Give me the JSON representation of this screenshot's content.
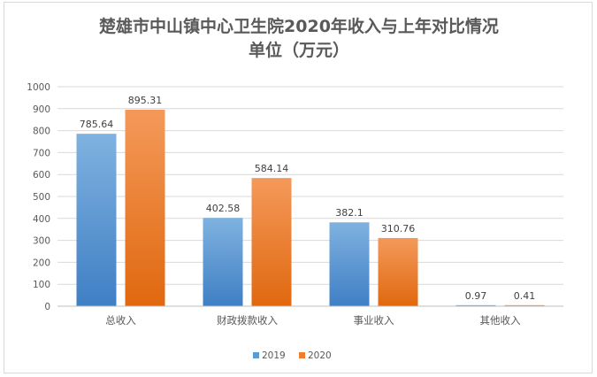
{
  "chart_data": {
    "type": "bar",
    "title": "楚雄市中山镇中心卫生院2020年收入与上年对比情况",
    "subtitle": "单位（万元）",
    "categories": [
      "总收入",
      "财政拨款收入",
      "事业收入",
      "其他收入"
    ],
    "series": [
      {
        "name": "2019",
        "values": [
          785.64,
          402.58,
          382.1,
          0.97
        ],
        "labels": [
          "785.64",
          "402.58",
          "382.1",
          "0.97"
        ],
        "color": "#5b9bd5"
      },
      {
        "name": "2020",
        "values": [
          895.31,
          584.14,
          310.76,
          0.41
        ],
        "labels": [
          "895.31",
          "584.14",
          "310.76",
          "0.41"
        ],
        "color": "#ed7d31"
      }
    ],
    "ylim": [
      0,
      1000
    ],
    "yticks": [
      "0",
      "100",
      "200",
      "300",
      "400",
      "500",
      "600",
      "700",
      "800",
      "900",
      "1000"
    ],
    "xlabel": "",
    "ylabel": "",
    "grid": true,
    "legend": "bottom"
  }
}
